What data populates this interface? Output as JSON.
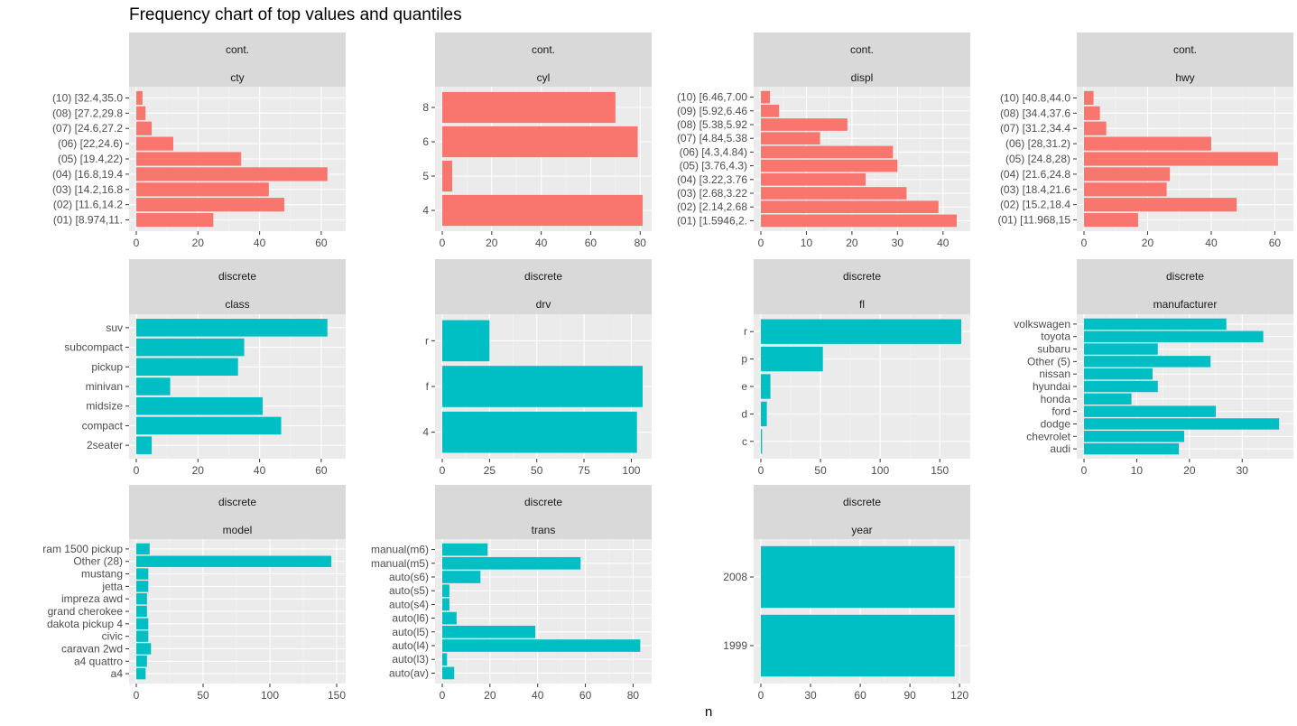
{
  "title": "Frequency chart of top values and quantiles",
  "xlabel": "n",
  "chart_data": [
    {
      "type": "bar",
      "orientation": "horizontal",
      "strip_top": "cont.",
      "strip_bottom": "cty",
      "color": "#F8766D",
      "categories": [
        "(01) [8.974,11.",
        "(02) [11.6,14.2",
        "(03) [14.2,16.8",
        "(04) [16.8,19.4",
        "(05) [19.4,22)",
        "(06) [22,24.6)",
        "(07) [24.6,27.2",
        "(08) [27.2,29.8",
        "(10) [32.4,35.0"
      ],
      "values": [
        25,
        48,
        43,
        62,
        34,
        12,
        5,
        3,
        2
      ],
      "xlim": [
        0,
        65
      ],
      "xticks": [
        0,
        20,
        40,
        60
      ]
    },
    {
      "type": "bar",
      "orientation": "horizontal",
      "strip_top": "cont.",
      "strip_bottom": "cyl",
      "color": "#F8766D",
      "categories": [
        "4",
        "5",
        "6",
        "8"
      ],
      "values": [
        81,
        4,
        79,
        70
      ],
      "xlim": [
        0,
        81
      ],
      "xticks": [
        0,
        20,
        40,
        60,
        80
      ]
    },
    {
      "type": "bar",
      "orientation": "horizontal",
      "strip_top": "cont.",
      "strip_bottom": "displ",
      "color": "#F8766D",
      "categories": [
        "(01) [1.5946,2.",
        "(02) [2.14,2.68",
        "(03) [2.68,3.22",
        "(04) [3.22,3.76",
        "(05) [3.76,4.3)",
        "(06) [4.3,4.84)",
        "(07) [4.84,5.38",
        "(08) [5.38,5.92",
        "(09) [5.92,6.46",
        "(10) [6.46,7.00"
      ],
      "values": [
        43,
        39,
        32,
        23,
        30,
        29,
        13,
        19,
        4,
        2
      ],
      "xlim": [
        0,
        44
      ],
      "xticks": [
        0,
        10,
        20,
        30,
        40
      ]
    },
    {
      "type": "bar",
      "orientation": "horizontal",
      "strip_top": "cont.",
      "strip_bottom": "hwy",
      "color": "#F8766D",
      "categories": [
        "(01) [11.968,15",
        "(02) [15.2,18.4",
        "(03) [18.4,21.6",
        "(04) [21.6,24.8",
        "(05) [24.8,28)",
        "(06) [28,31.2)",
        "(07) [31.2,34.4",
        "(08) [34.4,37.6",
        "(10) [40.8,44.0"
      ],
      "values": [
        17,
        48,
        26,
        27,
        61,
        40,
        7,
        5,
        3
      ],
      "xlim": [
        0,
        63
      ],
      "xticks": [
        0,
        20,
        40,
        60
      ]
    },
    {
      "type": "bar",
      "orientation": "horizontal",
      "strip_top": "discrete",
      "strip_bottom": "class",
      "color": "#00BFC4",
      "categories": [
        "2seater",
        "compact",
        "midsize",
        "minivan",
        "pickup",
        "subcompact",
        "suv"
      ],
      "values": [
        5,
        47,
        41,
        11,
        33,
        35,
        62
      ],
      "xlim": [
        0,
        65
      ],
      "xticks": [
        0,
        20,
        40,
        60
      ]
    },
    {
      "type": "bar",
      "orientation": "horizontal",
      "strip_top": "discrete",
      "strip_bottom": "drv",
      "color": "#00BFC4",
      "categories": [
        "4",
        "f",
        "r"
      ],
      "values": [
        103,
        106,
        25
      ],
      "xlim": [
        0,
        106
      ],
      "xticks": [
        0,
        25,
        50,
        75,
        100
      ]
    },
    {
      "type": "bar",
      "orientation": "horizontal",
      "strip_top": "discrete",
      "strip_bottom": "fl",
      "color": "#00BFC4",
      "categories": [
        "c",
        "d",
        "e",
        "p",
        "r"
      ],
      "values": [
        1,
        5,
        8,
        52,
        168
      ],
      "xlim": [
        0,
        168
      ],
      "xticks": [
        0,
        50,
        100,
        150
      ]
    },
    {
      "type": "bar",
      "orientation": "horizontal",
      "strip_top": "discrete",
      "strip_bottom": "manufacturer",
      "color": "#00BFC4",
      "categories": [
        "audi",
        "chevrolet",
        "dodge",
        "ford",
        "honda",
        "hyundai",
        "nissan",
        "Other (5)",
        "subaru",
        "toyota",
        "volkswagen"
      ],
      "values": [
        18,
        19,
        37,
        25,
        9,
        14,
        13,
        24,
        14,
        34,
        27
      ],
      "xlim": [
        0,
        38
      ],
      "xticks": [
        0,
        10,
        20,
        30
      ]
    },
    {
      "type": "bar",
      "orientation": "horizontal",
      "strip_top": "discrete",
      "strip_bottom": "model",
      "color": "#00BFC4",
      "categories": [
        "a4",
        "a4 quattro",
        "caravan 2wd",
        "civic",
        "dakota pickup 4",
        "grand cherokee",
        "impreza awd",
        "jetta",
        "mustang",
        "Other (28)",
        "ram 1500 pickup"
      ],
      "values": [
        7,
        8,
        11,
        9,
        9,
        8,
        8,
        9,
        9,
        146,
        10
      ],
      "xlim": [
        0,
        150
      ],
      "xticks": [
        0,
        50,
        100,
        150
      ]
    },
    {
      "type": "bar",
      "orientation": "horizontal",
      "strip_top": "discrete",
      "strip_bottom": "trans",
      "color": "#00BFC4",
      "categories": [
        "auto(av)",
        "auto(l3)",
        "auto(l4)",
        "auto(l5)",
        "auto(l6)",
        "auto(s4)",
        "auto(s5)",
        "auto(s6)",
        "manual(m5)",
        "manual(m6)"
      ],
      "values": [
        5,
        2,
        83,
        39,
        6,
        3,
        3,
        16,
        58,
        19
      ],
      "xlim": [
        0,
        84
      ],
      "xticks": [
        0,
        20,
        40,
        60,
        80
      ]
    },
    {
      "type": "bar",
      "orientation": "horizontal",
      "strip_top": "discrete",
      "strip_bottom": "year",
      "color": "#00BFC4",
      "categories": [
        "1999",
        "2008"
      ],
      "values": [
        117,
        117
      ],
      "xlim": [
        0,
        121
      ],
      "xticks": [
        0,
        30,
        60,
        90,
        120
      ]
    }
  ]
}
